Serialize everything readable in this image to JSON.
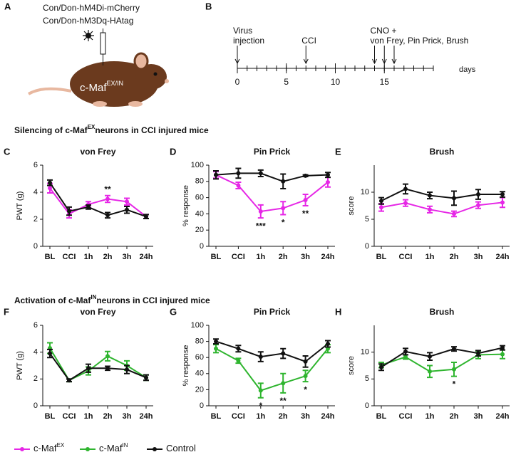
{
  "panel_a": {
    "letter": "A",
    "construct_lines": [
      "Con/Don-hM4Di-mCherry",
      "Con/Don-hM3Dq-HAtag"
    ],
    "mouse_label": "c-Maf",
    "mouse_label_sup": "EX/IN"
  },
  "panel_b": {
    "letter": "B",
    "xlim": [
      0,
      20
    ],
    "xticks": [
      0,
      5,
      10,
      15
    ],
    "minor_step": 1,
    "unit": "days",
    "events": [
      {
        "days": [
          0
        ],
        "lines": [
          "Virus",
          "injection"
        ]
      },
      {
        "days": [
          7
        ],
        "lines": [
          "CCI"
        ]
      },
      {
        "days": [
          14,
          15,
          16
        ],
        "lines": [
          "CNO +",
          "von Frey, Pin Prick, Brush"
        ]
      }
    ]
  },
  "sections": [
    {
      "prefix": "Silencing of c-Maf",
      "sup": "EX",
      "suffix": "neurons in CCI injured mice"
    },
    {
      "prefix": "Activation of c-Maf",
      "sup": "IN",
      "suffix": "neurons in CCI injured mice"
    }
  ],
  "chart_data": [
    {
      "type": "line",
      "panel": "C",
      "title": "von Frey",
      "ylabel": "PWT (g)",
      "categories": [
        "BL",
        "CCI",
        "1h",
        "2h",
        "3h",
        "24h"
      ],
      "ylim": [
        0,
        6
      ],
      "yticks": [
        0,
        2,
        4,
        6
      ],
      "series": [
        {
          "name": "c-Maf",
          "superscript": "EX",
          "color": "#e627e6",
          "values": [
            4.3,
            2.4,
            3.1,
            3.5,
            3.3,
            2.2
          ],
          "errors": [
            0.35,
            0.3,
            0.2,
            0.25,
            0.25,
            0.15
          ]
        },
        {
          "name": "Control",
          "color": "#111111",
          "values": [
            4.7,
            2.6,
            2.9,
            2.3,
            2.7,
            2.2
          ],
          "errors": [
            0.2,
            0.3,
            0.15,
            0.2,
            0.25,
            0.15
          ]
        }
      ],
      "annotations": [
        {
          "text": "**",
          "category": 3,
          "position": "above"
        }
      ]
    },
    {
      "type": "line",
      "panel": "D",
      "title": "Pin Prick",
      "ylabel": "% response",
      "categories": [
        "BL",
        "CCI",
        "1h",
        "2h",
        "3h",
        "24h"
      ],
      "ylim": [
        0,
        100
      ],
      "yticks": [
        0,
        20,
        40,
        60,
        80,
        100
      ],
      "series": [
        {
          "name": "c-Maf",
          "superscript": "EX",
          "color": "#e627e6",
          "values": [
            88,
            75,
            43,
            47,
            57,
            79
          ],
          "errors": [
            4,
            4,
            8,
            8,
            7,
            6
          ]
        },
        {
          "name": "Control",
          "color": "#111111",
          "values": [
            88,
            90,
            90,
            80,
            87,
            88
          ],
          "errors": [
            5,
            6,
            4,
            9,
            1,
            3
          ]
        }
      ],
      "annotations": [
        {
          "text": "***",
          "category": 2,
          "position": "below"
        },
        {
          "text": "*",
          "category": 3,
          "position": "below"
        },
        {
          "text": "**",
          "category": 4,
          "position": "below"
        }
      ]
    },
    {
      "type": "line",
      "panel": "E",
      "title": "Brush",
      "ylabel": "score",
      "categories": [
        "BL",
        "CCI",
        "1h",
        "2h",
        "3h",
        "24h"
      ],
      "ylim": [
        0,
        15
      ],
      "yticks": [
        0,
        5,
        10
      ],
      "series": [
        {
          "name": "c-Maf",
          "superscript": "EX",
          "color": "#e627e6",
          "values": [
            7.2,
            8.0,
            6.8,
            6.0,
            7.6,
            8.1
          ],
          "errors": [
            0.7,
            0.6,
            0.6,
            0.5,
            0.6,
            0.9
          ]
        },
        {
          "name": "Control",
          "color": "#111111",
          "values": [
            8.4,
            10.6,
            9.4,
            8.9,
            9.6,
            9.6
          ],
          "errors": [
            0.6,
            0.9,
            0.6,
            1.3,
            0.9,
            0.5
          ]
        }
      ],
      "annotations": []
    },
    {
      "type": "line",
      "panel": "F",
      "title": "von Frey",
      "ylabel": "PWT (g)",
      "categories": [
        "BL",
        "CCI",
        "1h",
        "2h",
        "3h",
        "24h"
      ],
      "ylim": [
        0,
        6
      ],
      "yticks": [
        0,
        2,
        4,
        6
      ],
      "series": [
        {
          "name": "c-Maf",
          "superscript": "IN",
          "color": "#2fb52f",
          "values": [
            4.3,
            1.9,
            2.6,
            3.7,
            3.0,
            2.1
          ],
          "errors": [
            0.4,
            0.1,
            0.3,
            0.35,
            0.35,
            0.2
          ]
        },
        {
          "name": "Control",
          "color": "#111111",
          "values": [
            3.9,
            1.9,
            2.8,
            2.8,
            2.7,
            2.1
          ],
          "errors": [
            0.3,
            0.1,
            0.3,
            0.15,
            0.3,
            0.2
          ]
        }
      ],
      "annotations": []
    },
    {
      "type": "line",
      "panel": "G",
      "title": "Pin Prick",
      "ylabel": "% response",
      "categories": [
        "BL",
        "CCI",
        "1h",
        "2h",
        "3h",
        "24h"
      ],
      "ylim": [
        0,
        100
      ],
      "yticks": [
        0,
        20,
        40,
        60,
        80,
        100
      ],
      "series": [
        {
          "name": "c-Maf",
          "superscript": "IN",
          "color": "#2fb52f",
          "values": [
            71,
            56,
            19,
            28,
            37,
            71
          ],
          "errors": [
            5,
            3,
            9,
            12,
            7,
            5
          ]
        },
        {
          "name": "Control",
          "color": "#111111",
          "values": [
            80,
            71,
            61,
            65,
            55,
            77
          ],
          "errors": [
            3,
            4,
            6,
            6,
            7,
            4
          ]
        }
      ],
      "annotations": [
        {
          "text": "*",
          "category": 2,
          "position": "below"
        },
        {
          "text": "**",
          "category": 3,
          "position": "below"
        },
        {
          "text": "*",
          "category": 4,
          "position": "below"
        }
      ]
    },
    {
      "type": "line",
      "panel": "H",
      "title": "Brush",
      "ylabel": "score",
      "categories": [
        "BL",
        "CCI",
        "1h",
        "2h",
        "3h",
        "24h"
      ],
      "ylim": [
        0,
        15
      ],
      "yticks": [
        0,
        5,
        10
      ],
      "series": [
        {
          "name": "c-Maf",
          "superscript": "IN",
          "color": "#2fb52f",
          "values": [
            7.6,
            9.1,
            6.4,
            6.8,
            9.5,
            9.6
          ],
          "errors": [
            0.5,
            0.4,
            1.1,
            1.3,
            0.7,
            0.8
          ]
        },
        {
          "name": "Control",
          "color": "#111111",
          "values": [
            7.2,
            10.1,
            9.2,
            10.6,
            9.8,
            10.8
          ],
          "errors": [
            0.6,
            0.6,
            0.7,
            0.4,
            0.5,
            0.4
          ]
        }
      ],
      "annotations": [
        {
          "text": "*",
          "category": 3,
          "position": "below"
        }
      ]
    }
  ]
}
